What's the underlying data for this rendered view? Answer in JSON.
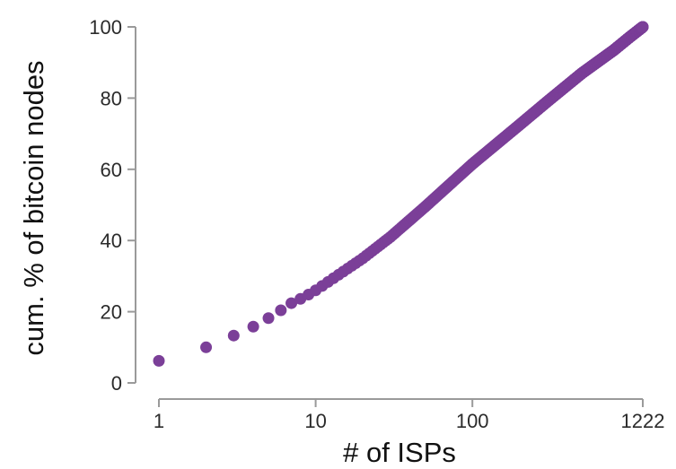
{
  "chart_data": {
    "type": "scatter",
    "title": "",
    "xlabel": "# of ISPs",
    "ylabel": "cum. % of bitcoin nodes",
    "x_scale": "log",
    "xlim": [
      1,
      1222
    ],
    "ylim": [
      0,
      100
    ],
    "x_ticks": [
      {
        "value": 1,
        "label": "1"
      },
      {
        "value": 10,
        "label": "10"
      },
      {
        "value": 100,
        "label": "100"
      },
      {
        "value": 1222,
        "label": "1222"
      }
    ],
    "y_ticks": [
      {
        "value": 0,
        "label": "0"
      },
      {
        "value": 20,
        "label": "20"
      },
      {
        "value": 40,
        "label": "40"
      },
      {
        "value": 60,
        "label": "60"
      },
      {
        "value": 80,
        "label": "80"
      },
      {
        "value": 100,
        "label": "100"
      }
    ],
    "grid": false,
    "legend": "none",
    "marker_color": "#7b3f98",
    "discrete_points": [
      {
        "x": 1,
        "y": 6.2
      },
      {
        "x": 2,
        "y": 10.0
      },
      {
        "x": 3,
        "y": 13.3
      },
      {
        "x": 4,
        "y": 15.8
      },
      {
        "x": 5,
        "y": 18.2
      },
      {
        "x": 6,
        "y": 20.4
      },
      {
        "x": 7,
        "y": 22.4
      },
      {
        "x": 8,
        "y": 23.6
      },
      {
        "x": 9,
        "y": 24.8
      }
    ],
    "curve_anchors": [
      {
        "x": 10,
        "y": 26.0
      },
      {
        "x": 20,
        "y": 35.0
      },
      {
        "x": 30,
        "y": 41.0
      },
      {
        "x": 50,
        "y": 49.5
      },
      {
        "x": 100,
        "y": 61.5
      },
      {
        "x": 200,
        "y": 72.5
      },
      {
        "x": 300,
        "y": 79.0
      },
      {
        "x": 500,
        "y": 87.0
      },
      {
        "x": 800,
        "y": 93.5
      },
      {
        "x": 1000,
        "y": 97.0
      },
      {
        "x": 1222,
        "y": 100.0
      }
    ]
  }
}
